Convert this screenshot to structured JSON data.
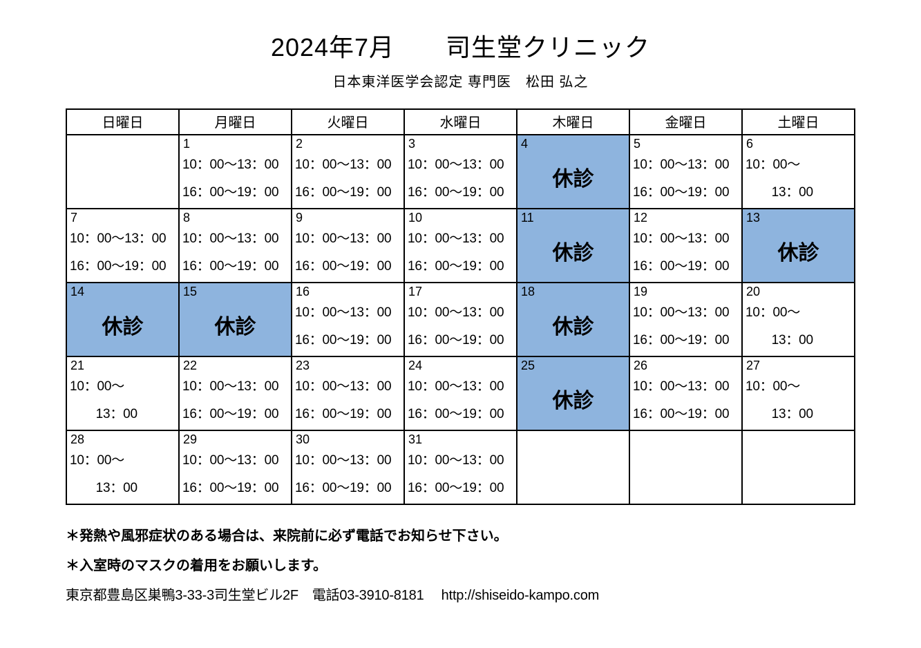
{
  "title": "2024年7月　　司生堂クリニック",
  "subtitle": "日本東洋医学会認定  専門医　松田 弘之",
  "closed_bg_color": "#8eb4de",
  "closed_label": "休診",
  "day_headers": [
    "日曜日",
    "月曜日",
    "火曜日",
    "水曜日",
    "木曜日",
    "金曜日",
    "土曜日"
  ],
  "weeks": [
    [
      {
        "day": "",
        "lines": [],
        "closed": false
      },
      {
        "day": "1",
        "lines": [
          "10：00～13：00",
          "16：00～19：00"
        ],
        "closed": false
      },
      {
        "day": "2",
        "lines": [
          "10：00～13：00",
          "16：00～19：00"
        ],
        "closed": false
      },
      {
        "day": "3",
        "lines": [
          "10：00～13：00",
          "16：00～19：00"
        ],
        "closed": false
      },
      {
        "day": "4",
        "lines": [],
        "closed": true
      },
      {
        "day": "5",
        "lines": [
          "10：00～13：00",
          "16：00～19：00"
        ],
        "closed": false
      },
      {
        "day": "6",
        "lines": [
          "10：00～",
          "　　13：00"
        ],
        "closed": false
      }
    ],
    [
      {
        "day": "7",
        "lines": [
          "10：00～13：00",
          "16：00～19：00"
        ],
        "closed": false
      },
      {
        "day": "8",
        "lines": [
          "10：00～13：00",
          "16：00～19：00"
        ],
        "closed": false
      },
      {
        "day": "9",
        "lines": [
          "10：00～13：00",
          "16：00～19：00"
        ],
        "closed": false
      },
      {
        "day": "10",
        "lines": [
          "10：00～13：00",
          "16：00～19：00"
        ],
        "closed": false
      },
      {
        "day": "11",
        "lines": [],
        "closed": true
      },
      {
        "day": "12",
        "lines": [
          "10：00～13：00",
          "16：00～19：00"
        ],
        "closed": false
      },
      {
        "day": "13",
        "lines": [],
        "closed": true
      }
    ],
    [
      {
        "day": "14",
        "lines": [],
        "closed": true
      },
      {
        "day": "15",
        "lines": [],
        "closed": true
      },
      {
        "day": "16",
        "lines": [
          "10：00～13：00",
          "16：00～19：00"
        ],
        "closed": false
      },
      {
        "day": "17",
        "lines": [
          "10：00～13：00",
          "16：00～19：00"
        ],
        "closed": false
      },
      {
        "day": "18",
        "lines": [],
        "closed": true
      },
      {
        "day": "19",
        "lines": [
          "10：00～13：00",
          "16：00～19：00"
        ],
        "closed": false
      },
      {
        "day": "20",
        "lines": [
          "10：00～",
          "　　13：00"
        ],
        "closed": false
      }
    ],
    [
      {
        "day": "21",
        "lines": [
          "10：00～",
          "　　13：00"
        ],
        "closed": false
      },
      {
        "day": "22",
        "lines": [
          "10：00～13：00",
          "16：00～19：00"
        ],
        "closed": false
      },
      {
        "day": "23",
        "lines": [
          "10：00～13：00",
          "16：00～19：00"
        ],
        "closed": false
      },
      {
        "day": "24",
        "lines": [
          "10：00～13：00",
          "16：00～19：00"
        ],
        "closed": false
      },
      {
        "day": "25",
        "lines": [],
        "closed": true
      },
      {
        "day": "26",
        "lines": [
          "10：00～13：00",
          "16：00～19：00"
        ],
        "closed": false
      },
      {
        "day": "27",
        "lines": [
          "10：00～",
          "　　13：00"
        ],
        "closed": false
      }
    ],
    [
      {
        "day": "28",
        "lines": [
          "10：00～",
          "　　13：00"
        ],
        "closed": false
      },
      {
        "day": "29",
        "lines": [
          "10：00～13：00",
          "16：00～19：00"
        ],
        "closed": false
      },
      {
        "day": "30",
        "lines": [
          "10：00～13：00",
          "16：00～19：00"
        ],
        "closed": false
      },
      {
        "day": "31",
        "lines": [
          "10：00～13：00",
          "16：00～19：00"
        ],
        "closed": false
      },
      {
        "day": "",
        "lines": [],
        "closed": false
      },
      {
        "day": "",
        "lines": [],
        "closed": false
      },
      {
        "day": "",
        "lines": [],
        "closed": false
      }
    ]
  ],
  "notes": {
    "n1": "＊発熱や風邪症状のある場合は、来院前に必ず電話でお知らせ下さい。",
    "n2": "＊入室時のマスクの着用をお願いします。"
  },
  "address": "東京都豊島区巣鴨3-33-3司生堂ビル2F　電話03-3910-8181　 http://shiseido-kampo.com"
}
